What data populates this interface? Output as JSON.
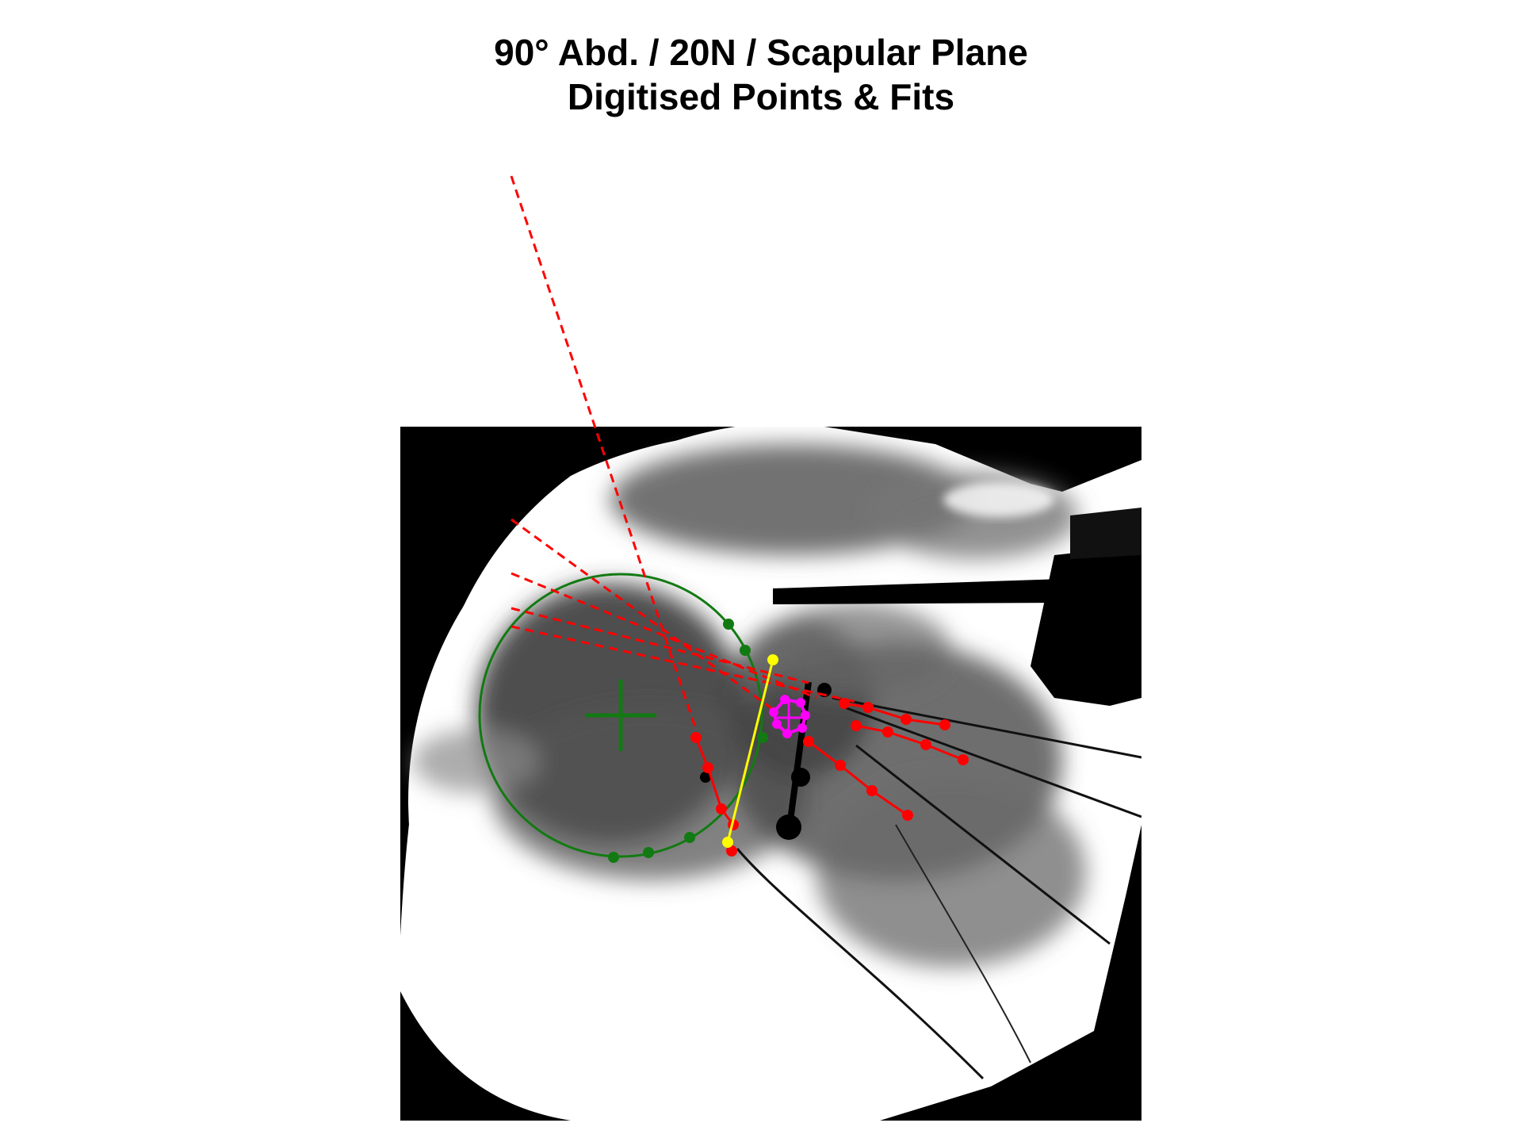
{
  "title": {
    "line1": "90° Abd. / 20N / Scapular Plane",
    "line2": "Digitised Points & Fits"
  },
  "colors": {
    "background": "#ffffff",
    "fluoro_dark": "#000000",
    "humeral_head_fit": "#127a12",
    "scapula_axes": "#ff0000",
    "glenoid_line": "#ffff00",
    "glenoid_center": "#ff00ff"
  },
  "layers": [
    "fluoroscopy-image",
    "humeral-head-circle-fit",
    "scapula-axis-lines",
    "glenoid-line",
    "glenoid-center-points"
  ]
}
